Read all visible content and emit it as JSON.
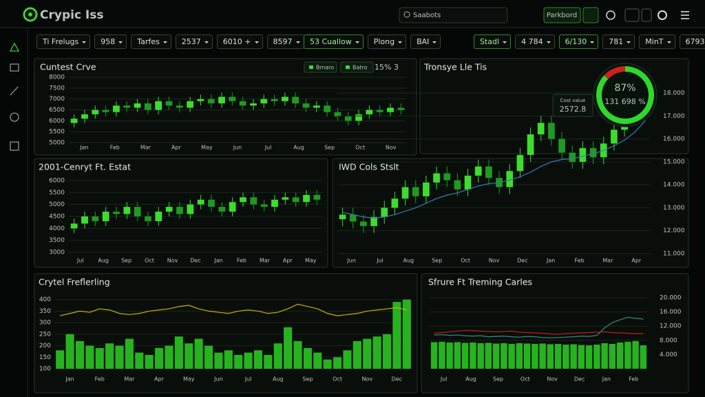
{
  "header": {
    "logo": "Crypic Iss",
    "search": "Saabots",
    "button": "Parkbord"
  },
  "toolbar": {
    "left": [
      "Ti Frelugs",
      "958",
      "Tarfes",
      "2537",
      "6010 +",
      "8597"
    ],
    "middle": [
      "53 Cuallow",
      "Plong",
      "BAI"
    ],
    "right": [
      "Stadl",
      "4 784",
      "6/130",
      "781",
      "MinT",
      "6793"
    ]
  },
  "chart_data": [
    {
      "type": "candlestick",
      "title": "Cuntest Crve",
      "legend_items": [
        "Bmaro",
        "Batro"
      ],
      "badge": "15% 3",
      "open": [
        5900,
        6100,
        6300,
        6500,
        6400,
        6700,
        6600,
        6800,
        6500,
        6900,
        6700,
        6600,
        6900,
        7000,
        6800,
        7100,
        6900,
        6700,
        6800,
        7000,
        6900,
        7100,
        6800,
        6600,
        6700,
        6400,
        6200,
        6000,
        6300,
        6500,
        6400,
        6600
      ],
      "close": [
        6100,
        6300,
        6500,
        6400,
        6700,
        6600,
        6800,
        6500,
        6900,
        6700,
        6600,
        6900,
        7000,
        6800,
        7100,
        6900,
        6700,
        6800,
        7000,
        6900,
        7100,
        6800,
        6600,
        6700,
        6400,
        6200,
        6000,
        6300,
        6500,
        6400,
        6600,
        6500
      ],
      "high": [
        6300,
        6500,
        6700,
        6700,
        6900,
        6900,
        7000,
        7000,
        7100,
        7100,
        6900,
        7100,
        7200,
        7200,
        7300,
        7300,
        7100,
        7000,
        7200,
        7200,
        7300,
        7300,
        7000,
        6900,
        6900,
        6600,
        6400,
        6500,
        6700,
        6700,
        6800,
        6800
      ],
      "low": [
        5700,
        5900,
        6100,
        6200,
        6200,
        6400,
        6400,
        6300,
        6300,
        6500,
        6400,
        6400,
        6700,
        6600,
        6600,
        6700,
        6500,
        6500,
        6600,
        6700,
        6700,
        6600,
        6400,
        6400,
        6200,
        6000,
        5800,
        5800,
        6100,
        6200,
        6200,
        6300
      ],
      "color": "#3ddc2f",
      "down_color": "#1f9a22",
      "x_labels": [
        "Jan",
        "Feb",
        "Mar",
        "Apr",
        "May",
        "Jun",
        "Jul",
        "Aug",
        "Sep",
        "Oct",
        "Nov"
      ],
      "ylim": [
        5000,
        8000
      ],
      "yticks": [
        5000,
        5500,
        6000,
        6500,
        7000,
        7500,
        8000
      ],
      "grid": true,
      "axis_side": "left"
    },
    {
      "type": "candlestick",
      "title": "2001-Cenryt Ft. Estat",
      "open": [
        4000,
        4200,
        4500,
        4300,
        4700,
        4600,
        4900,
        4500,
        4300,
        4700,
        4900,
        4600,
        5000,
        5200,
        4900,
        4700,
        5100,
        5300,
        5000,
        4900,
        5200,
        5300,
        5100,
        5400
      ],
      "close": [
        4200,
        4500,
        4300,
        4700,
        4600,
        4900,
        4500,
        4300,
        4700,
        4900,
        4600,
        5000,
        5200,
        4900,
        4700,
        5100,
        5300,
        5000,
        4900,
        5200,
        5300,
        5100,
        5400,
        5200
      ],
      "high": [
        4400,
        4700,
        4700,
        4900,
        4900,
        5100,
        5100,
        4700,
        4900,
        5100,
        5100,
        5200,
        5400,
        5400,
        5100,
        5300,
        5500,
        5500,
        5200,
        5400,
        5500,
        5500,
        5600,
        5600
      ],
      "low": [
        3800,
        4000,
        4100,
        4100,
        4400,
        4400,
        4300,
        4100,
        4100,
        4500,
        4400,
        4400,
        4800,
        4700,
        4500,
        4500,
        4900,
        4800,
        4700,
        4700,
        5000,
        4900,
        4900,
        5000
      ],
      "color": "#3ddc2f",
      "down_color": "#1f9a22",
      "x_labels": [
        "Jul",
        "Aug",
        "Sep",
        "Oct",
        "Nov",
        "Dec",
        "Jan",
        "Feb",
        "Mar",
        "Apr",
        "May"
      ],
      "ylim": [
        3000,
        6000
      ],
      "yticks": [
        3000,
        3500,
        4000,
        4500,
        5000,
        5500,
        6000
      ],
      "grid": true,
      "axis_side": "left"
    },
    {
      "type": "candlestick",
      "title": "IWD Cols Stslt",
      "open": [
        12500,
        12700,
        12400,
        12200,
        12600,
        13000,
        13400,
        13900,
        13500,
        14100,
        14500,
        14200,
        13800,
        14400,
        14800,
        14300,
        13900,
        14600,
        15300,
        16200,
        16700,
        16000,
        15400,
        15000,
        15600,
        15200,
        15800,
        16400,
        16900,
        17400
      ],
      "close": [
        12700,
        12400,
        12200,
        12600,
        13000,
        13400,
        13900,
        13500,
        14100,
        14500,
        14200,
        13800,
        14400,
        14800,
        14300,
        13900,
        14600,
        15300,
        16200,
        16700,
        16000,
        15400,
        15000,
        15600,
        15200,
        15800,
        16400,
        16900,
        17400,
        17600
      ],
      "high": [
        13000,
        13000,
        12700,
        12900,
        13300,
        13700,
        14200,
        14200,
        14400,
        14800,
        14800,
        14500,
        14700,
        15100,
        15100,
        14600,
        14900,
        15600,
        16500,
        17000,
        17000,
        16300,
        15700,
        15900,
        15900,
        16100,
        16700,
        17200,
        17700,
        17900
      ],
      "low": [
        12200,
        12100,
        11900,
        11900,
        12300,
        12700,
        13100,
        13200,
        13200,
        13800,
        13900,
        13500,
        13500,
        14100,
        14000,
        13600,
        13600,
        14300,
        15000,
        15900,
        15700,
        15100,
        14700,
        14700,
        14900,
        14900,
        15500,
        16100,
        16600,
        17100
      ],
      "color": "#3ddc2f",
      "down_color": "#1f9a22",
      "lines": [
        {
          "color": "#3b78b8",
          "values": [
            12800,
            12700,
            12600,
            12550,
            12600,
            12700,
            12850,
            13000,
            13200,
            13400,
            13550,
            13650,
            13800,
            13950,
            14050,
            14100,
            14200,
            14350,
            14550,
            14800,
            15000,
            15100,
            15150,
            15250,
            15350,
            15500,
            15700,
            15950,
            16300,
            16800
          ]
        }
      ],
      "x_labels": [
        "Jun",
        "Jul",
        "Aug",
        "Sep",
        "Oct",
        "Nov",
        "Dec",
        "Jan",
        "Feb",
        "Mar",
        "Apr"
      ],
      "ylim": [
        11000,
        18000
      ],
      "yticks": [
        {
          "value": 11000,
          "label": "11.000"
        },
        {
          "value": 12000,
          "label": "12.000"
        },
        {
          "value": 13000,
          "label": "13.000"
        },
        {
          "value": 14000,
          "label": "14.000"
        },
        {
          "value": 15000,
          "label": "15.000"
        },
        {
          "value": 16000,
          "label": "16.000"
        },
        {
          "value": 17000,
          "label": "17.000"
        },
        {
          "value": 18000,
          "label": "18.000"
        }
      ],
      "grid": true,
      "axis_side": "right"
    },
    {
      "type": "bar",
      "title": "Crytel Freflerling",
      "values": [
        180,
        250,
        220,
        200,
        190,
        210,
        200,
        230,
        170,
        160,
        190,
        200,
        240,
        210,
        230,
        200,
        170,
        180,
        160,
        170,
        180,
        160,
        210,
        280,
        220,
        190,
        170,
        140,
        150,
        180,
        220,
        230,
        240,
        250,
        390,
        400
      ],
      "color": "#27b320",
      "lines": [
        {
          "color": "#c8b400",
          "values": [
            330,
            340,
            350,
            345,
            360,
            355,
            340,
            335,
            340,
            350,
            355,
            360,
            370,
            375,
            360,
            350,
            345,
            340,
            350,
            355,
            350,
            340,
            345,
            360,
            380,
            370,
            360,
            340,
            330,
            335,
            340,
            350,
            355,
            360,
            365,
            355
          ]
        }
      ],
      "x_labels": [
        "Jan",
        "Feb",
        "Mar",
        "Apr",
        "May",
        "Jun",
        "Jul",
        "Aug",
        "Sep",
        "Oct",
        "Nov",
        "Dec"
      ],
      "ylim": [
        100,
        420
      ],
      "yticks": [
        100,
        150,
        200,
        250,
        300,
        350,
        400
      ],
      "grid": true,
      "axis_side": "left"
    },
    {
      "type": "bar",
      "title": "Sfrure Ft Treming Carles",
      "values": [
        7500,
        7600,
        7400,
        7500,
        7300,
        7400,
        7200,
        7300,
        7100,
        7200,
        7000,
        7200,
        7100,
        7000,
        7100,
        6900,
        7000,
        6800,
        6900,
        6700,
        6600,
        6800,
        7200,
        7000,
        7400,
        7600,
        7800,
        6600
      ],
      "color": "#27b320",
      "lines": [
        {
          "color": "#2f8f8a",
          "values": [
            9500,
            9600,
            9400,
            9500,
            9300,
            9200,
            9300,
            9000,
            9100,
            9200,
            9000,
            8900,
            9100,
            9000,
            8800,
            8700,
            8800,
            8900,
            9000,
            9200,
            9100,
            9400,
            11500,
            13000,
            13800,
            14500,
            14200,
            14000
          ]
        },
        {
          "color": "#c0201c",
          "values": [
            10000,
            10200,
            10400,
            10600,
            10800,
            10700,
            10600,
            10500,
            10400,
            10500,
            10600,
            10300,
            10200,
            10100,
            10000,
            9800,
            9700,
            9900,
            10000,
            10100,
            10200,
            10300,
            10400,
            10200,
            10100,
            10000,
            9900,
            9900
          ]
        }
      ],
      "x_labels": [
        "Jul",
        "Aug",
        "Sep",
        "Oct",
        "Nov",
        "Dec",
        "Jan",
        "Feb"
      ],
      "ylim": [
        0,
        20000
      ],
      "yticks": [
        {
          "value": 4000,
          "label": "4.000"
        },
        {
          "value": 8000,
          "label": "8.000"
        },
        {
          "value": 12000,
          "label": "12.000"
        },
        {
          "value": 16000,
          "label": "16.000"
        },
        {
          "value": 20000,
          "label": "20.000"
        }
      ],
      "grid": true,
      "axis_side": "right"
    },
    {
      "type": "gauge",
      "title": "Tronsye Lle Tis",
      "values": [
        87
      ],
      "value_labels": [
        "87%"
      ],
      "subtitle": "131 698 %",
      "color": "#2fd82a",
      "rest_color": "#d0201c",
      "tooltip_title": "Cost value",
      "tooltip_value": "2572.8"
    }
  ]
}
